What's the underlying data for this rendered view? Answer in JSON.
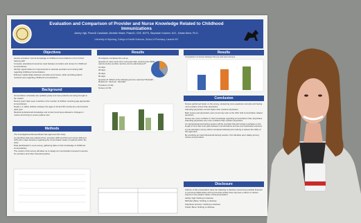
{
  "poster": {
    "title": "Evaluation and Comparison of Provider and Nurse Knowledge Related to Childhood Immunizations",
    "authors": "Ashley Vigil, PharmD Candidate, Michelle Hilaire, PharmD, CDE, BCPS, Stephanie Gochenr, M.D., Kristen Bene, Ph.D.",
    "affiliation": "University of Wyoming, College of Health Sciences, School of Pharmacy, Laramie WY",
    "sections": [
      {
        "heading": "Objectives",
        "lines": [
          "Assess providers' current knowledge of childhood immunizations in Fort of their training staff",
          "Compare educational resources used between providers and nurses for childhood immunizations",
          "Identify opportunities for improvements to educate providers and nursing staff regarding childhood immunizations",
          "Enhance relationships between providers and nurses, while providing patient-centered care regarding childhood immunizations"
        ]
      },
      {
        "heading": "Background",
        "lines": [
          "Immunization schedules are updated yearly and new products are being brought to the market",
          "Recent years have seen a decline in the number of children receiving age appropriate immunizations",
          "Nearly 1.1 million children between the ages of 19 and 35 months are unimmunized each year",
          "Medical professionals knowledge and current trend keep abreast to changes in routine and timing to ensure patient care"
        ]
      },
      {
        "heading": "Methods",
        "lines": [
          "The Investigational Review Board has approved this study",
          "An identified data was collected from providers (MD and DO) and nurses (RN and LPN) who make decisions regarding the immunization status of patients within the clinic",
          "Data participated in a pre-survey, gathering data on their knowledge of childhood immunizations",
          "The results of this survey will allow us to design an immunization focused in-service for providers and other interested parties"
        ]
      },
      {
        "heading": "Results",
        "lines": [
          "34 subjects completed the survey",
          "Question 6: How much time must pass after receiving the MMR vaccine before another vaccine can be administered?",
          "21 days",
          "28 days",
          "30 days",
          "60 days",
          "Question 8: Which of the following are live vaccines? Rubella*, Rotavirus*, Fluvirus*, Varicella*",
          "Providers (n=16)",
          "Nurses (n=15)"
        ]
      },
      {
        "heading": "Results",
        "lines": [
          "Comparison of scores between the pre and post surveys"
        ]
      },
      {
        "heading": "Conclusion",
        "lines": [
          "Nurses performed better on the survey, answering more questions correctly and having more positive scores than physicians",
          "Attending physicians scored higher than resident physicians",
          "Both nurses and physicians most commonly refer to the CDC with immunization related questions",
          "Nurses are more confident in their knowledge regarding immunizations than physicians. Attending physicians are more confident than resident physicians",
          "An interprofessional training session will be provided that will include emphasis on the length of time that must pass between immunizations and live and inactivated vaccines",
          "A post-education survey will be completed following the training to assess the utility of this approach",
          "By providing an interprofessional training session, this will allow open dialog among nurses and providers"
        ]
      },
      {
        "heading": "Disclosure",
        "lines": [
          "Authors of this presentation have the following to disclose concerning possible financial or personal relationships with commercial entities that may have a direct or indirect interest in the subject matter of this presentation:",
          "Ashley Vigil: Nothing to disclose",
          "Michelle Hilaire: Nothing to disclose",
          "Stephanie Gochenr: Nothing to disclose",
          "Kristen Bene: Nothing to disclose"
        ]
      }
    ]
  }
}
